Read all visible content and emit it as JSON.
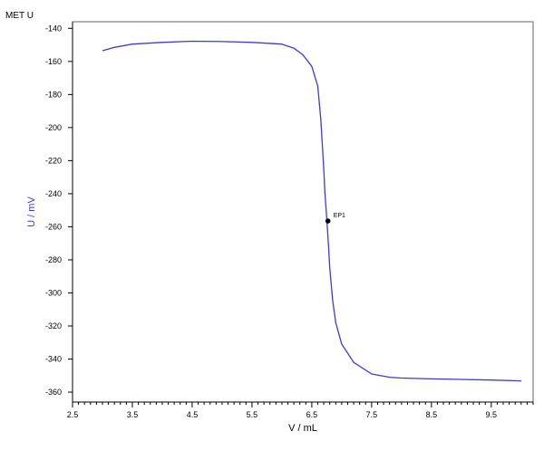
{
  "chart_data": {
    "type": "line",
    "title": "MET U",
    "xlabel": "V / mL",
    "ylabel": "U / mV",
    "xlim": [
      2.5,
      10.2
    ],
    "ylim": [
      -366,
      -136
    ],
    "x_ticks": [
      2.5,
      3.5,
      4.5,
      5.5,
      6.5,
      7.5,
      8.5,
      9.5
    ],
    "x_tick_labels": [
      "2.5",
      "3.5",
      "4.5",
      "5.5",
      "6.5",
      "7.5",
      "8.5",
      "9.5"
    ],
    "y_ticks": [
      -140,
      -160,
      -180,
      -200,
      -220,
      -240,
      -260,
      -280,
      -300,
      -320,
      -340,
      -360
    ],
    "y_tick_labels": [
      "-140",
      "-160",
      "-180",
      "-200",
      "-220",
      "-240",
      "-260",
      "-280",
      "-300",
      "-320",
      "-340",
      "-360"
    ],
    "grid": false,
    "series": [
      {
        "color": "#3b3bd6",
        "x": [
          3.0,
          3.2,
          3.5,
          4.0,
          4.5,
          5.0,
          5.5,
          6.0,
          6.2,
          6.35,
          6.5,
          6.6,
          6.65,
          6.7,
          6.72,
          6.75,
          6.78,
          6.8,
          6.85,
          6.9,
          7.0,
          7.2,
          7.5,
          7.8,
          8.0,
          8.5,
          9.0,
          9.5,
          10.0
        ],
        "y": [
          -153.5,
          -151.5,
          -149.5,
          -148.5,
          -147.8,
          -148.0,
          -148.5,
          -149.5,
          -152,
          -156,
          -163,
          -175,
          -195,
          -225,
          -240,
          -255,
          -272,
          -285,
          -305,
          -318,
          -331,
          -342,
          -349,
          -351,
          -351.5,
          -352,
          -352.3,
          -352.7,
          -353.2
        ]
      }
    ],
    "annotations": [
      {
        "label": "EP1",
        "x": 6.77,
        "y": -256.5,
        "color": "#000000"
      }
    ],
    "colors": {
      "line": "#3b3bd6",
      "ylabel": "#3b3bd6",
      "axis": "#000000",
      "frame": "#666666"
    }
  }
}
